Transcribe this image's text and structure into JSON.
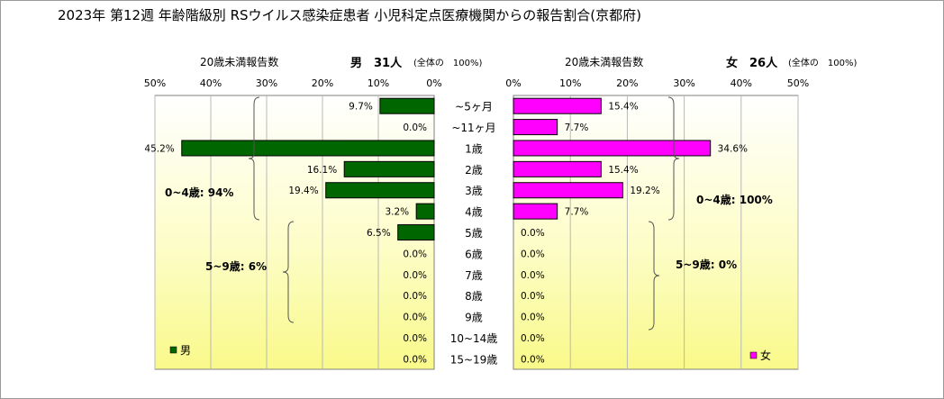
{
  "title": "2023年 第12週 年齢階級別 RSウイルス感染症患者 小児科定点医療機関からの報告割合(京都府)",
  "chart_data": {
    "type": "bar",
    "orientation": "horizontal-pyramid",
    "categories": [
      "~5ヶ月",
      "~11ヶ月",
      "1歳",
      "2歳",
      "3歳",
      "4歳",
      "5歳",
      "6歳",
      "7歳",
      "8歳",
      "9歳",
      "10~14歳",
      "15~19歳"
    ],
    "axis_ticks": [
      "0%",
      "10%",
      "20%",
      "30%",
      "40%",
      "50%"
    ],
    "xlim": [
      0,
      50
    ],
    "grid": true,
    "series": [
      {
        "name": "男",
        "side": "left",
        "color": "#006600",
        "header_label": "20歳未満報告数",
        "header_count": "男　31人",
        "header_note": "(全体の　100%)",
        "values": [
          9.7,
          0.0,
          45.2,
          16.1,
          19.4,
          3.2,
          6.5,
          0.0,
          0.0,
          0.0,
          0.0,
          0.0,
          0.0
        ],
        "labels": [
          "9.7%",
          "0.0%",
          "45.2%",
          "16.1%",
          "19.4%",
          "3.2%",
          "6.5%",
          "0.0%",
          "0.0%",
          "0.0%",
          "0.0%",
          "0.0%",
          "0.0%"
        ],
        "annotations": [
          "0~4歳: 94%",
          "5~9歳: 6%"
        ]
      },
      {
        "name": "女",
        "side": "right",
        "color": "#ff00ff",
        "header_label": "20歳未満報告数",
        "header_count": "女　26人",
        "header_note": "(全体の　100%)",
        "values": [
          15.4,
          7.7,
          34.6,
          15.4,
          19.2,
          7.7,
          0.0,
          0.0,
          0.0,
          0.0,
          0.0,
          0.0,
          0.0
        ],
        "labels": [
          "15.4%",
          "7.7%",
          "34.6%",
          "15.4%",
          "19.2%",
          "7.7%",
          "0.0%",
          "0.0%",
          "0.0%",
          "0.0%",
          "0.0%",
          "0.0%",
          "0.0%"
        ],
        "annotations": [
          "0~4歳: 100%",
          "5~9歳: 0%"
        ]
      }
    ]
  }
}
